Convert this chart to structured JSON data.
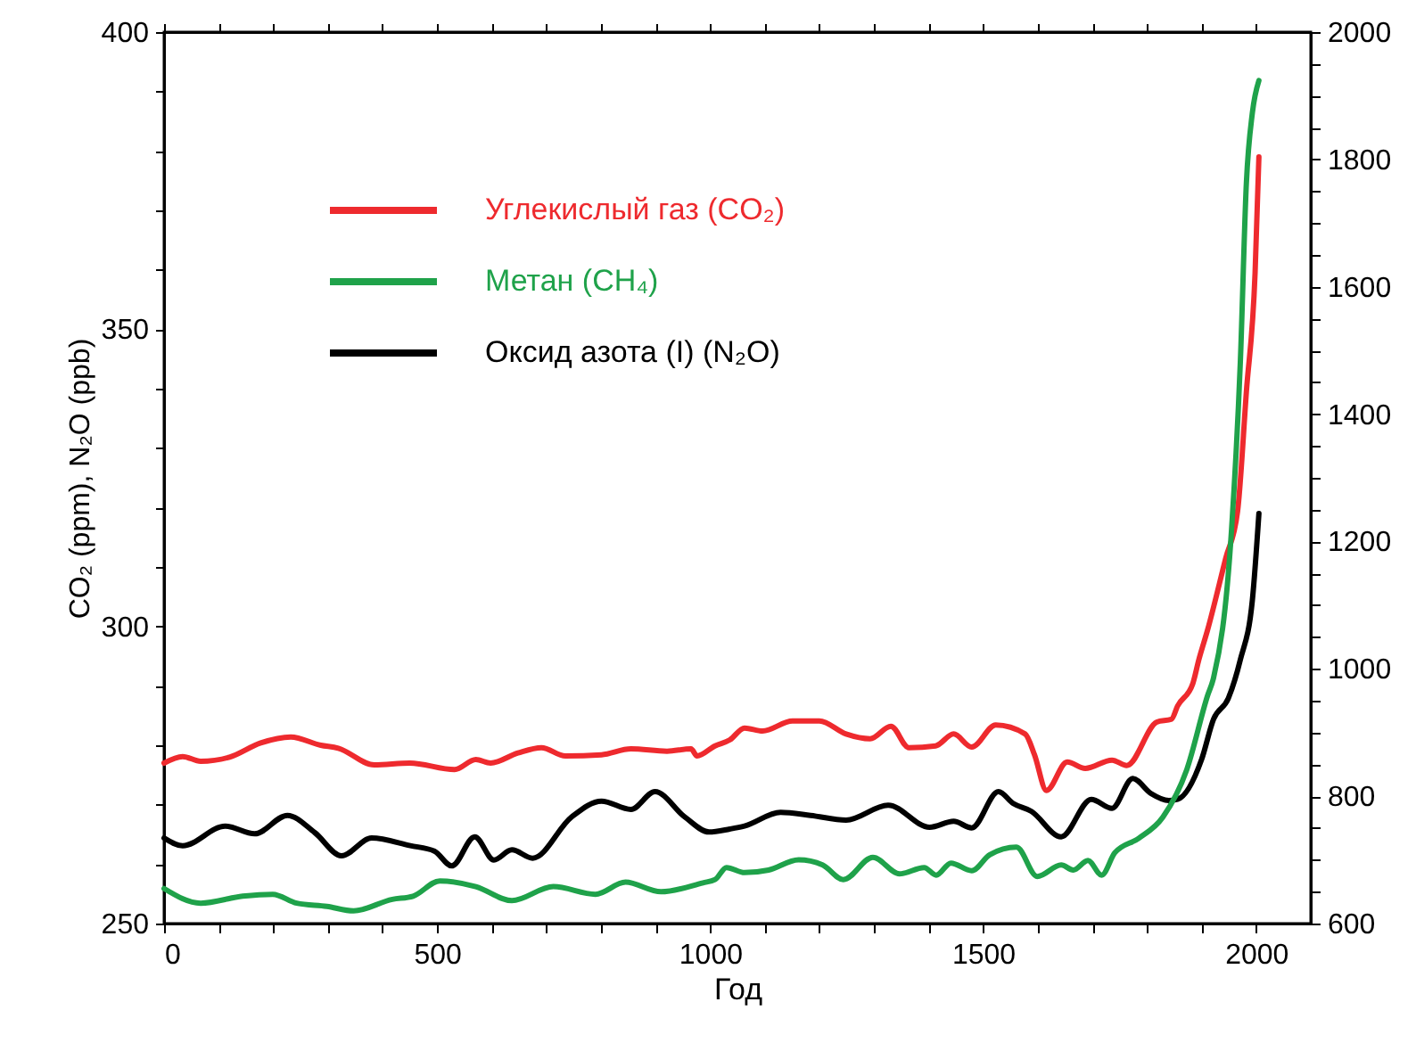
{
  "chart_data": {
    "type": "line",
    "xlabel": "Год",
    "ylabel": "CO₂ (ppm), N₂O (ppb)",
    "xlim": [
      0,
      2100
    ],
    "xticks": [
      0,
      {
        "value": 100,
        "label": null
      },
      {
        "value": 200,
        "label": null
      },
      {
        "value": 300,
        "label": null
      },
      {
        "value": 400,
        "label": null
      },
      500,
      {
        "value": 600,
        "label": null
      },
      {
        "value": 700,
        "label": null
      },
      {
        "value": 800,
        "label": null
      },
      {
        "value": 900,
        "label": null
      },
      1000,
      {
        "value": 1100,
        "label": null
      },
      {
        "value": 1200,
        "label": null
      },
      {
        "value": 1300,
        "label": null
      },
      {
        "value": 1400,
        "label": null
      },
      1500,
      {
        "value": 1600,
        "label": null
      },
      {
        "value": 1700,
        "label": null
      },
      {
        "value": 1800,
        "label": null
      },
      {
        "value": 1900,
        "label": null
      },
      2000
    ],
    "ylim": [
      250,
      400
    ],
    "yticks": [
      250,
      {
        "value": 260,
        "label": null
      },
      {
        "value": 270,
        "label": null
      },
      {
        "value": 280,
        "label": null
      },
      {
        "value": 290,
        "label": null
      },
      300,
      {
        "value": 310,
        "label": null
      },
      {
        "value": 320,
        "label": null
      },
      {
        "value": 330,
        "label": null
      },
      {
        "value": 340,
        "label": null
      },
      350,
      {
        "value": 360,
        "label": null
      },
      {
        "value": 370,
        "label": null
      },
      {
        "value": 380,
        "label": null
      },
      {
        "value": 390,
        "label": null
      },
      400
    ],
    "y2lim": [
      600,
      2000
    ],
    "y2ticks": [
      600,
      {
        "value": 650,
        "label": null
      },
      {
        "value": 700,
        "label": null
      },
      {
        "value": 750,
        "label": null
      },
      800,
      {
        "value": 850,
        "label": null
      },
      {
        "value": 900,
        "label": null
      },
      {
        "value": 950,
        "label": null
      },
      1000,
      {
        "value": 1050,
        "label": null
      },
      {
        "value": 1100,
        "label": null
      },
      {
        "value": 1150,
        "label": null
      },
      1200,
      {
        "value": 1250,
        "label": null
      },
      {
        "value": 1300,
        "label": null
      },
      {
        "value": 1350,
        "label": null
      },
      1400,
      {
        "value": 1450,
        "label": null
      },
      {
        "value": 1500,
        "label": null
      },
      {
        "value": 1550,
        "label": null
      },
      1600,
      {
        "value": 1650,
        "label": null
      },
      {
        "value": 1700,
        "label": null
      },
      {
        "value": 1750,
        "label": null
      },
      1800,
      {
        "value": 1850,
        "label": null
      },
      {
        "value": 1900,
        "label": null
      },
      {
        "value": 1950,
        "label": null
      },
      2000
    ],
    "legend": "top left",
    "grid": false,
    "marker": "none",
    "line_style": "solid",
    "series": [
      {
        "name": "Углекислый газ (CO₂)",
        "color": "#ee2a2e",
        "axis": "y",
        "x": [
          0,
          34,
          67,
          120,
          177,
          232,
          287,
          319,
          385,
          450,
          532,
          571,
          598,
          648,
          691,
          735,
          801,
          855,
          921,
          965,
          976,
          1009,
          1036,
          1063,
          1096,
          1151,
          1200,
          1249,
          1293,
          1331,
          1364,
          1413,
          1446,
          1479,
          1523,
          1577,
          1594,
          1616,
          1654,
          1687,
          1736,
          1763,
          1818,
          1845,
          1856,
          1884,
          1895,
          1911,
          1944,
          1966,
          1982,
          1998,
          2005
        ],
        "values": [
          277,
          278.1,
          277.3,
          278,
          280.4,
          281.4,
          280,
          279.5,
          276.7,
          277,
          275.9,
          277.6,
          277,
          278.7,
          279.6,
          278.2,
          278.4,
          279.4,
          279,
          279.4,
          278.2,
          279.9,
          280.9,
          282.9,
          282.4,
          284.1,
          284.1,
          281.9,
          281.1,
          283.2,
          279.6,
          279.9,
          281.9,
          279.7,
          283.4,
          281.9,
          278.4,
          272.4,
          277.2,
          276.1,
          277.5,
          276.6,
          283.9,
          284.4,
          286.6,
          290.4,
          294.4,
          299.4,
          311.4,
          319.4,
          339.4,
          359.5,
          379
        ]
      },
      {
        "name": "Метан (CH₄)",
        "color": "#1fa24a",
        "axis": "y2",
        "x": [
          0,
          67,
          144,
          199,
          243,
          298,
          347,
          418,
          456,
          505,
          571,
          637,
          713,
          790,
          845,
          910,
          987,
          1009,
          1030,
          1063,
          1107,
          1162,
          1206,
          1244,
          1298,
          1347,
          1392,
          1414,
          1441,
          1479,
          1512,
          1561,
          1599,
          1643,
          1665,
          1692,
          1717,
          1741,
          1785,
          1829,
          1873,
          1911,
          1922,
          1955,
          1971,
          1982,
          1993,
          2005
        ],
        "values": [
          655,
          632,
          643,
          646,
          632,
          627,
          620,
          638,
          643,
          667,
          658,
          636,
          658,
          646,
          665,
          650,
          664,
          669,
          688,
          680,
          684,
          700,
          692,
          669,
          704,
          678,
          688,
          676,
          695,
          683,
          708,
          720,
          674,
          692,
          684,
          699,
          676,
          711,
          734,
          767,
          842,
          958,
          986,
          1220,
          1482,
          1762,
          1873,
          1924
        ]
      },
      {
        "name": "Оксид азота (I) (N₂O)",
        "color": "#000000",
        "axis": "y",
        "x": [
          0,
          34,
          112,
          166,
          226,
          276,
          325,
          380,
          451,
          495,
          527,
          569,
          604,
          637,
          675,
          746,
          801,
          855,
          899,
          954,
          998,
          1036,
          1063,
          1129,
          1184,
          1249,
          1326,
          1402,
          1446,
          1479,
          1528,
          1555,
          1588,
          1643,
          1698,
          1736,
          1774,
          1807,
          1840,
          1856,
          1900,
          1922,
          1949,
          1971,
          1993,
          2005
        ],
        "values": [
          264.4,
          263.1,
          266.4,
          265.1,
          268.2,
          265.3,
          261.4,
          264.4,
          263.1,
          262.2,
          259.7,
          264.6,
          260.7,
          262.4,
          261,
          267.9,
          270.6,
          269.2,
          272.2,
          267.9,
          265.4,
          265.9,
          266.4,
          268.7,
          268.2,
          267.4,
          269.9,
          266.2,
          267.2,
          266.1,
          272.2,
          270.2,
          268.9,
          264.6,
          270.9,
          269.4,
          274.4,
          271.9,
          270.7,
          270.9,
          277.6,
          284.4,
          287.9,
          294.4,
          304.4,
          319
        ]
      }
    ]
  }
}
